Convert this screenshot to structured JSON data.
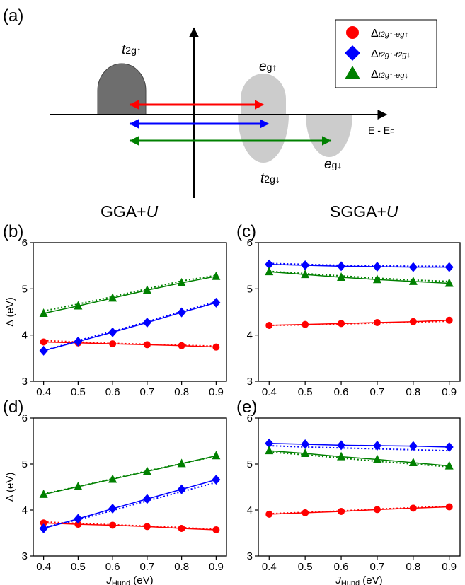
{
  "panel_labels": [
    "(a)",
    "(b)",
    "(c)",
    "(d)",
    "(e)"
  ],
  "column_titles": {
    "left": {
      "text": "GGA+",
      "italic": "U"
    },
    "right": {
      "text": "SGGA+",
      "italic": "U"
    }
  },
  "diagram": {
    "energy_axis_label": "E - E",
    "energy_axis_sub": "F",
    "states": [
      {
        "main": "t",
        "sub": "2g↑"
      },
      {
        "main": "e",
        "sub": "g↑"
      },
      {
        "main": "t",
        "sub": "2g↓"
      },
      {
        "main": "e",
        "sub": "g↓"
      }
    ],
    "arrow_colors": [
      "#ff0000",
      "#0000ff",
      "#008000"
    ]
  },
  "legend": [
    {
      "marker": "circle",
      "color": "#ff0000",
      "prefix": "Δ",
      "sub": "t2g↑-eg↑"
    },
    {
      "marker": "diamond",
      "color": "#0000ff",
      "prefix": "Δ",
      "sub": "t2g↑-t2g↓"
    },
    {
      "marker": "triangle",
      "color": "#008000",
      "prefix": "Δ",
      "sub": "t2g↑-eg↓"
    }
  ],
  "chart_data": [
    {
      "panel": "(b)",
      "type": "line",
      "x": [
        0.4,
        0.5,
        0.6,
        0.7,
        0.8,
        0.9
      ],
      "xlabel": "",
      "ylabel": "Δ (eV)",
      "ylim": [
        3,
        6
      ],
      "xlim": [
        0.37,
        0.93
      ],
      "xticks": [
        "0.4",
        "0.5",
        "0.6",
        "0.7",
        "0.8",
        "0.9"
      ],
      "yticks": [
        "3",
        "4",
        "5",
        "6"
      ],
      "series": [
        {
          "color": "#ff0000",
          "marker": "circle",
          "values": [
            3.85,
            3.83,
            3.81,
            3.79,
            3.77,
            3.74
          ],
          "dotted": [
            3.88,
            3.85,
            3.82,
            3.8,
            3.78,
            3.76
          ]
        },
        {
          "color": "#0000ff",
          "marker": "diamond",
          "values": [
            3.66,
            3.86,
            4.06,
            4.27,
            4.49,
            4.7
          ],
          "dotted": [
            3.66,
            3.88,
            4.08,
            4.29,
            4.51,
            4.72
          ]
        },
        {
          "color": "#008000",
          "marker": "triangle",
          "values": [
            4.47,
            4.63,
            4.8,
            4.97,
            5.13,
            5.27
          ],
          "dotted": [
            4.52,
            4.67,
            4.83,
            5.0,
            5.17,
            5.29
          ]
        }
      ]
    },
    {
      "panel": "(c)",
      "type": "line",
      "x": [
        0.4,
        0.5,
        0.6,
        0.7,
        0.8,
        0.9
      ],
      "xlabel": "",
      "ylabel": "",
      "ylim": [
        3,
        6
      ],
      "xlim": [
        0.37,
        0.93
      ],
      "xticks": [
        "0.4",
        "0.5",
        "0.6",
        "0.7",
        "0.8",
        "0.9"
      ],
      "yticks": [
        "3",
        "4",
        "5",
        "6"
      ],
      "series": [
        {
          "color": "#ff0000",
          "marker": "circle",
          "values": [
            4.21,
            4.23,
            4.25,
            4.27,
            4.29,
            4.32
          ],
          "dotted": [
            4.21,
            4.22,
            4.24,
            4.26,
            4.28,
            4.3
          ]
        },
        {
          "color": "#0000ff",
          "marker": "diamond",
          "values": [
            5.53,
            5.51,
            5.49,
            5.48,
            5.47,
            5.47
          ],
          "dotted": [
            5.55,
            5.53,
            5.51,
            5.5,
            5.49,
            5.49
          ]
        },
        {
          "color": "#008000",
          "marker": "triangle",
          "values": [
            5.37,
            5.31,
            5.25,
            5.2,
            5.16,
            5.12
          ],
          "dotted": [
            5.38,
            5.33,
            5.28,
            5.23,
            5.19,
            5.16
          ]
        }
      ]
    },
    {
      "panel": "(d)",
      "type": "line",
      "x": [
        0.4,
        0.5,
        0.6,
        0.7,
        0.8,
        0.9
      ],
      "xlabel": "J_Hund (eV)",
      "ylabel": "Δ (eV)",
      "ylim": [
        3,
        6
      ],
      "xlim": [
        0.37,
        0.93
      ],
      "xticks": [
        "0.4",
        "0.5",
        "0.6",
        "0.7",
        "0.8",
        "0.9"
      ],
      "yticks": [
        "3",
        "4",
        "5",
        "6"
      ],
      "series": [
        {
          "color": "#ff0000",
          "marker": "circle",
          "values": [
            3.72,
            3.69,
            3.67,
            3.64,
            3.6,
            3.57
          ],
          "dotted": [
            3.74,
            3.71,
            3.68,
            3.65,
            3.62,
            3.58
          ]
        },
        {
          "color": "#0000ff",
          "marker": "diamond",
          "values": [
            3.6,
            3.81,
            4.03,
            4.24,
            4.45,
            4.66
          ],
          "dotted": [
            3.62,
            3.79,
            3.99,
            4.2,
            4.4,
            4.6
          ]
        },
        {
          "color": "#008000",
          "marker": "triangle",
          "values": [
            4.34,
            4.51,
            4.67,
            4.84,
            5.01,
            5.18
          ],
          "dotted": [
            4.35,
            4.51,
            4.68,
            4.85,
            5.01,
            5.17
          ]
        }
      ]
    },
    {
      "panel": "(e)",
      "type": "line",
      "x": [
        0.4,
        0.5,
        0.6,
        0.7,
        0.8,
        0.9
      ],
      "xlabel": "J_Hund (eV)",
      "ylabel": "",
      "ylim": [
        3,
        6
      ],
      "xlim": [
        0.37,
        0.93
      ],
      "xticks": [
        "0.4",
        "0.5",
        "0.6",
        "0.7",
        "0.8",
        "0.9"
      ],
      "yticks": [
        "3",
        "4",
        "5",
        "6"
      ],
      "series": [
        {
          "color": "#ff0000",
          "marker": "circle",
          "values": [
            3.91,
            3.94,
            3.97,
            4.01,
            4.04,
            4.07
          ],
          "dotted": [
            3.92,
            3.95,
            3.98,
            4.02,
            4.05,
            4.08
          ]
        },
        {
          "color": "#0000ff",
          "marker": "diamond",
          "values": [
            5.45,
            5.43,
            5.41,
            5.4,
            5.39,
            5.37
          ],
          "dotted": [
            5.4,
            5.37,
            5.35,
            5.33,
            5.31,
            5.29
          ]
        },
        {
          "color": "#008000",
          "marker": "triangle",
          "values": [
            5.29,
            5.23,
            5.16,
            5.1,
            5.03,
            4.96
          ],
          "dotted": [
            5.26,
            5.2,
            5.13,
            5.06,
            5.0,
            4.94
          ]
        }
      ]
    }
  ]
}
